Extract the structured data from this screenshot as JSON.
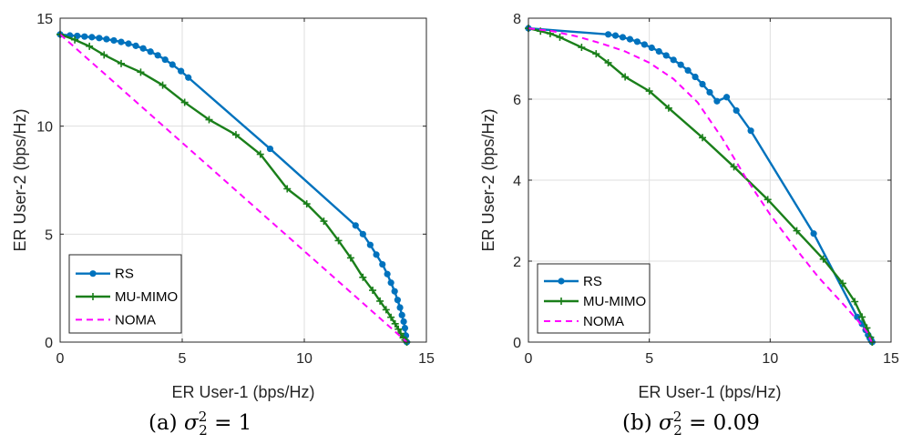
{
  "chart_data": [
    {
      "type": "line",
      "caption": {
        "prefix": "(a) ",
        "var": "σ",
        "sub": "2",
        "sup": "2",
        "rel": " = 1"
      },
      "xlabel": "ER User-1 (bps/Hz)",
      "ylabel": "ER User-2 (bps/Hz)",
      "xlim": [
        0,
        15
      ],
      "ylim": [
        0,
        15
      ],
      "xticks": [
        0,
        5,
        10,
        15
      ],
      "yticks": [
        0,
        5,
        10,
        15
      ],
      "grid": true,
      "legend": {
        "placement": "bottom-left",
        "entries": [
          "RS",
          "MU-MIMO",
          "NOMA"
        ]
      },
      "series": [
        {
          "name": "RS",
          "color": "#0072BD",
          "marker": "dot",
          "x": [
            0,
            0.4,
            0.7,
            1.0,
            1.3,
            1.6,
            1.9,
            2.2,
            2.5,
            2.8,
            3.1,
            3.4,
            3.7,
            4.0,
            4.3,
            4.6,
            4.95,
            5.25,
            8.6,
            12.1,
            12.4,
            12.7,
            12.95,
            13.2,
            13.4,
            13.55,
            13.7,
            13.82,
            13.92,
            14.0,
            14.07,
            14.12,
            14.16,
            14.2
          ],
          "y": [
            14.25,
            14.2,
            14.18,
            14.15,
            14.12,
            14.08,
            14.03,
            13.97,
            13.9,
            13.82,
            13.72,
            13.6,
            13.45,
            13.28,
            13.08,
            12.85,
            12.55,
            12.25,
            8.95,
            5.4,
            5.0,
            4.5,
            4.05,
            3.6,
            3.15,
            2.75,
            2.35,
            1.95,
            1.6,
            1.25,
            0.95,
            0.65,
            0.3,
            0.0
          ]
        },
        {
          "name": "MU-MIMO",
          "color": "#1A7F1A",
          "marker": "plus",
          "x": [
            0,
            0.6,
            1.2,
            1.8,
            2.5,
            3.3,
            4.2,
            5.1,
            6.1,
            7.2,
            8.2,
            9.3,
            10.1,
            10.8,
            11.4,
            11.9,
            12.4,
            12.8,
            13.1,
            13.35,
            13.55,
            13.72,
            13.85,
            13.95,
            14.05,
            14.12,
            14.2
          ],
          "y": [
            14.25,
            14.0,
            13.7,
            13.3,
            12.9,
            12.5,
            11.9,
            11.1,
            10.3,
            9.6,
            8.7,
            7.1,
            6.4,
            5.6,
            4.7,
            3.9,
            3.0,
            2.4,
            1.9,
            1.5,
            1.15,
            0.85,
            0.6,
            0.4,
            0.2,
            0.1,
            0.0
          ]
        },
        {
          "name": "NOMA",
          "color": "#FF00FF",
          "marker": "none",
          "dashed": true,
          "x": [
            0,
            14.2
          ],
          "y": [
            14.25,
            0.0
          ]
        }
      ]
    },
    {
      "type": "line",
      "caption": {
        "prefix": "(b) ",
        "var": "σ",
        "sub": "2",
        "sup": "2",
        "rel": " = 0.09"
      },
      "xlabel": "ER User-1 (bps/Hz)",
      "ylabel": "ER User-2 (bps/Hz)",
      "xlim": [
        0,
        15
      ],
      "ylim": [
        0,
        8
      ],
      "xticks": [
        0,
        5,
        10,
        15
      ],
      "yticks": [
        0,
        2,
        4,
        6,
        8
      ],
      "grid": true,
      "legend": {
        "placement": "bottom-left",
        "entries": [
          "RS",
          "MU-MIMO",
          "NOMA"
        ]
      },
      "series": [
        {
          "name": "RS",
          "color": "#0072BD",
          "marker": "dot",
          "x": [
            0,
            3.3,
            3.6,
            3.9,
            4.2,
            4.5,
            4.8,
            5.1,
            5.4,
            5.7,
            6.0,
            6.3,
            6.6,
            6.9,
            7.2,
            7.5,
            7.8,
            8.2,
            8.6,
            9.2,
            11.8,
            13.6,
            13.8,
            13.95,
            14.05,
            14.12,
            14.18,
            14.22
          ],
          "y": [
            7.75,
            7.6,
            7.57,
            7.53,
            7.48,
            7.42,
            7.35,
            7.27,
            7.18,
            7.08,
            6.97,
            6.85,
            6.71,
            6.55,
            6.37,
            6.17,
            5.95,
            6.05,
            5.72,
            5.22,
            2.68,
            0.62,
            0.45,
            0.3,
            0.18,
            0.1,
            0.04,
            0.0
          ]
        },
        {
          "name": "MU-MIMO",
          "color": "#1A7F1A",
          "marker": "plus",
          "x": [
            0,
            0.5,
            0.9,
            1.3,
            2.2,
            2.8,
            3.3,
            4.0,
            5.0,
            5.8,
            7.2,
            8.5,
            9.9,
            11.1,
            12.2,
            13.0,
            13.5,
            13.8,
            14.0,
            14.15,
            14.22
          ],
          "y": [
            7.75,
            7.68,
            7.62,
            7.53,
            7.28,
            7.12,
            6.9,
            6.55,
            6.2,
            5.78,
            5.05,
            4.33,
            3.52,
            2.75,
            2.05,
            1.45,
            1.0,
            0.62,
            0.35,
            0.12,
            0.0
          ]
        },
        {
          "name": "NOMA",
          "color": "#FF00FF",
          "marker": "none",
          "dashed": true,
          "x": [
            0,
            1.0,
            2.0,
            3.0,
            4.0,
            5.0,
            6.0,
            7.0,
            8.0,
            9.0,
            10.0,
            11.0,
            12.0,
            13.0,
            13.6,
            14.0,
            14.2
          ],
          "y": [
            7.75,
            7.68,
            7.55,
            7.38,
            7.18,
            6.9,
            6.5,
            5.92,
            5.05,
            4.05,
            3.15,
            2.35,
            1.6,
            0.95,
            0.55,
            0.25,
            0.0
          ]
        }
      ]
    }
  ]
}
